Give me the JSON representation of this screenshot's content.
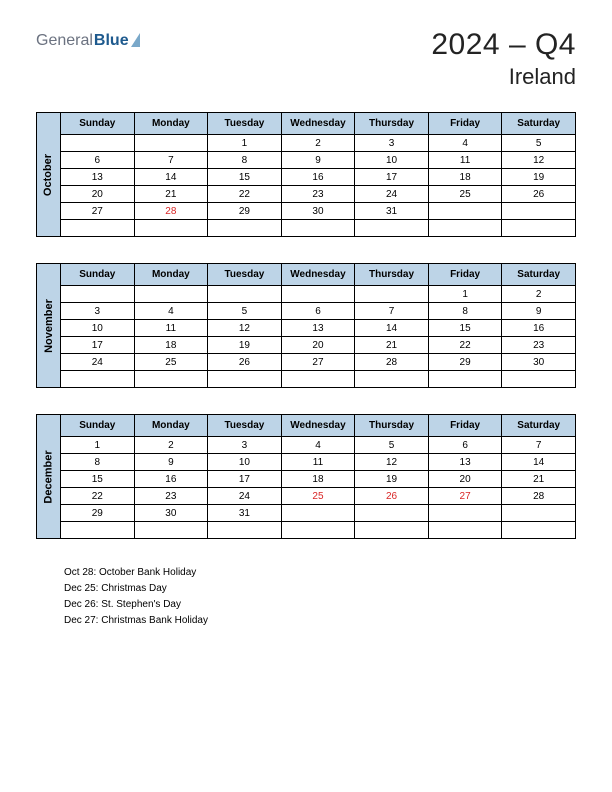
{
  "logo": {
    "part1": "General",
    "part2": "Blue"
  },
  "title": {
    "main": "2024 – Q4",
    "sub": "Ireland"
  },
  "colors": {
    "header_bg": "#bdd4e7",
    "month_label_bg": "#bdd4e7",
    "holiday_text": "#d92626",
    "border": "#000000"
  },
  "day_headers": [
    "Sunday",
    "Monday",
    "Tuesday",
    "Wednesday",
    "Thursday",
    "Friday",
    "Saturday"
  ],
  "months": [
    {
      "name": "October",
      "weeks": [
        [
          "",
          "",
          "1",
          "2",
          "3",
          "4",
          "5"
        ],
        [
          "6",
          "7",
          "8",
          "9",
          "10",
          "11",
          "12"
        ],
        [
          "13",
          "14",
          "15",
          "16",
          "17",
          "18",
          "19"
        ],
        [
          "20",
          "21",
          "22",
          "23",
          "24",
          "25",
          "26"
        ],
        [
          "27",
          "28",
          "29",
          "30",
          "31",
          "",
          ""
        ],
        [
          "",
          "",
          "",
          "",
          "",
          "",
          ""
        ]
      ],
      "holidays": [
        [
          4,
          1
        ]
      ]
    },
    {
      "name": "November",
      "weeks": [
        [
          "",
          "",
          "",
          "",
          "",
          "1",
          "2"
        ],
        [
          "3",
          "4",
          "5",
          "6",
          "7",
          "8",
          "9"
        ],
        [
          "10",
          "11",
          "12",
          "13",
          "14",
          "15",
          "16"
        ],
        [
          "17",
          "18",
          "19",
          "20",
          "21",
          "22",
          "23"
        ],
        [
          "24",
          "25",
          "26",
          "27",
          "28",
          "29",
          "30"
        ],
        [
          "",
          "",
          "",
          "",
          "",
          "",
          ""
        ]
      ],
      "holidays": []
    },
    {
      "name": "December",
      "weeks": [
        [
          "1",
          "2",
          "3",
          "4",
          "5",
          "6",
          "7"
        ],
        [
          "8",
          "9",
          "10",
          "11",
          "12",
          "13",
          "14"
        ],
        [
          "15",
          "16",
          "17",
          "18",
          "19",
          "20",
          "21"
        ],
        [
          "22",
          "23",
          "24",
          "25",
          "26",
          "27",
          "28"
        ],
        [
          "29",
          "30",
          "31",
          "",
          "",
          "",
          ""
        ],
        [
          "",
          "",
          "",
          "",
          "",
          "",
          ""
        ]
      ],
      "holidays": [
        [
          3,
          3
        ],
        [
          3,
          4
        ],
        [
          3,
          5
        ]
      ]
    }
  ],
  "holiday_list": [
    "Oct 28: October Bank Holiday",
    "Dec 25: Christmas Day",
    "Dec 26: St. Stephen's Day",
    "Dec 27: Christmas Bank Holiday"
  ]
}
